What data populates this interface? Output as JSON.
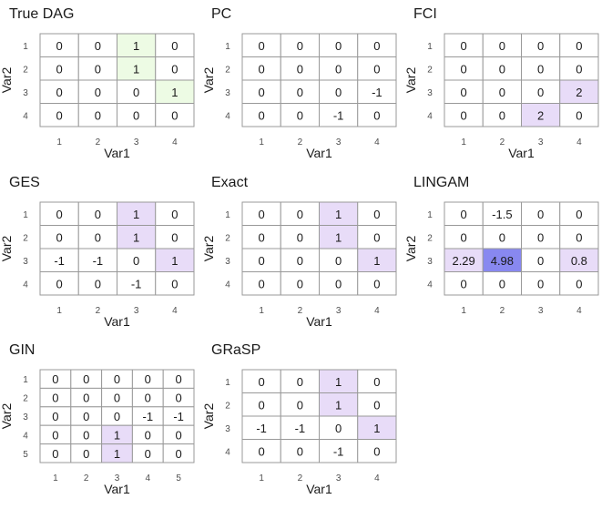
{
  "colors": {
    "cell_default": "#ffffff",
    "cell_match": "#edfbe4",
    "cell_diff": "#e8dcf8",
    "cell_strong": "#8888f0",
    "grid_line": "#999999"
  },
  "chart_data": [
    {
      "type": "heatmap",
      "title": "True DAG",
      "xlabel": "Var1",
      "ylabel": "Var2",
      "x_ticks": [
        "1",
        "2",
        "3",
        "4"
      ],
      "y_ticks": [
        "1",
        "2",
        "3",
        "4"
      ],
      "values": [
        [
          "0",
          "0",
          "1",
          "0"
        ],
        [
          "0",
          "0",
          "1",
          "0"
        ],
        [
          "0",
          "0",
          "0",
          "1"
        ],
        [
          "0",
          "0",
          "0",
          "0"
        ]
      ],
      "fills": [
        [
          "default",
          "default",
          "match",
          "default"
        ],
        [
          "default",
          "default",
          "match",
          "default"
        ],
        [
          "default",
          "default",
          "default",
          "match"
        ],
        [
          "default",
          "default",
          "default",
          "default"
        ]
      ]
    },
    {
      "type": "heatmap",
      "title": "PC",
      "xlabel": "Var1",
      "ylabel": "Var2",
      "x_ticks": [
        "1",
        "2",
        "3",
        "4"
      ],
      "y_ticks": [
        "1",
        "2",
        "3",
        "4"
      ],
      "values": [
        [
          "0",
          "0",
          "0",
          "0"
        ],
        [
          "0",
          "0",
          "0",
          "0"
        ],
        [
          "0",
          "0",
          "0",
          "-1"
        ],
        [
          "0",
          "0",
          "-1",
          "0"
        ]
      ],
      "fills": [
        [
          "default",
          "default",
          "default",
          "default"
        ],
        [
          "default",
          "default",
          "default",
          "default"
        ],
        [
          "default",
          "default",
          "default",
          "default"
        ],
        [
          "default",
          "default",
          "default",
          "default"
        ]
      ]
    },
    {
      "type": "heatmap",
      "title": "FCI",
      "xlabel": "Var1",
      "ylabel": "Var2",
      "x_ticks": [
        "1",
        "2",
        "3",
        "4"
      ],
      "y_ticks": [
        "1",
        "2",
        "3",
        "4"
      ],
      "values": [
        [
          "0",
          "0",
          "0",
          "0"
        ],
        [
          "0",
          "0",
          "0",
          "0"
        ],
        [
          "0",
          "0",
          "0",
          "2"
        ],
        [
          "0",
          "0",
          "2",
          "0"
        ]
      ],
      "fills": [
        [
          "default",
          "default",
          "default",
          "default"
        ],
        [
          "default",
          "default",
          "default",
          "default"
        ],
        [
          "default",
          "default",
          "default",
          "diff"
        ],
        [
          "default",
          "default",
          "diff",
          "default"
        ]
      ]
    },
    {
      "type": "heatmap",
      "title": "GES",
      "xlabel": "Var1",
      "ylabel": "Var2",
      "x_ticks": [
        "1",
        "2",
        "3",
        "4"
      ],
      "y_ticks": [
        "1",
        "2",
        "3",
        "4"
      ],
      "values": [
        [
          "0",
          "0",
          "1",
          "0"
        ],
        [
          "0",
          "0",
          "1",
          "0"
        ],
        [
          "-1",
          "-1",
          "0",
          "1"
        ],
        [
          "0",
          "0",
          "-1",
          "0"
        ]
      ],
      "fills": [
        [
          "default",
          "default",
          "diff",
          "default"
        ],
        [
          "default",
          "default",
          "diff",
          "default"
        ],
        [
          "default",
          "default",
          "default",
          "diff"
        ],
        [
          "default",
          "default",
          "default",
          "default"
        ]
      ]
    },
    {
      "type": "heatmap",
      "title": "Exact",
      "xlabel": "Var1",
      "ylabel": "Var2",
      "x_ticks": [
        "1",
        "2",
        "3",
        "4"
      ],
      "y_ticks": [
        "1",
        "2",
        "3",
        "4"
      ],
      "values": [
        [
          "0",
          "0",
          "1",
          "0"
        ],
        [
          "0",
          "0",
          "1",
          "0"
        ],
        [
          "0",
          "0",
          "0",
          "1"
        ],
        [
          "0",
          "0",
          "0",
          "0"
        ]
      ],
      "fills": [
        [
          "default",
          "default",
          "diff",
          "default"
        ],
        [
          "default",
          "default",
          "diff",
          "default"
        ],
        [
          "default",
          "default",
          "default",
          "diff"
        ],
        [
          "default",
          "default",
          "default",
          "default"
        ]
      ]
    },
    {
      "type": "heatmap",
      "title": "LINGAM",
      "xlabel": "",
      "ylabel": "Var2",
      "x_ticks": [
        "1",
        "2",
        "3",
        "4"
      ],
      "y_ticks": [
        "1",
        "2",
        "3",
        "4"
      ],
      "values": [
        [
          "0",
          "-1.5",
          "0",
          "0"
        ],
        [
          "0",
          "0",
          "0",
          "0"
        ],
        [
          "2.29",
          "4.98",
          "0",
          "0.8"
        ],
        [
          "0",
          "0",
          "0",
          "0"
        ]
      ],
      "fills": [
        [
          "default",
          "default",
          "default",
          "default"
        ],
        [
          "default",
          "default",
          "default",
          "default"
        ],
        [
          "diff",
          "strong",
          "default",
          "diff"
        ],
        [
          "default",
          "default",
          "default",
          "default"
        ]
      ]
    },
    {
      "type": "heatmap",
      "title": "GIN",
      "xlabel": "Var1",
      "ylabel": "Var2",
      "x_ticks": [
        "1",
        "2",
        "3",
        "4",
        "5"
      ],
      "y_ticks": [
        "1",
        "2",
        "3",
        "4",
        "5"
      ],
      "values": [
        [
          "0",
          "0",
          "0",
          "0",
          "0"
        ],
        [
          "0",
          "0",
          "0",
          "0",
          "0"
        ],
        [
          "0",
          "0",
          "0",
          "-1",
          "-1"
        ],
        [
          "0",
          "0",
          "1",
          "0",
          "0"
        ],
        [
          "0",
          "0",
          "1",
          "0",
          "0"
        ]
      ],
      "fills": [
        [
          "default",
          "default",
          "default",
          "default",
          "default"
        ],
        [
          "default",
          "default",
          "default",
          "default",
          "default"
        ],
        [
          "default",
          "default",
          "default",
          "default",
          "default"
        ],
        [
          "default",
          "default",
          "diff",
          "default",
          "default"
        ],
        [
          "default",
          "default",
          "diff",
          "default",
          "default"
        ]
      ]
    },
    {
      "type": "heatmap",
      "title": "GRaSP",
      "xlabel": "Var1",
      "ylabel": "Var2",
      "x_ticks": [
        "1",
        "2",
        "3",
        "4"
      ],
      "y_ticks": [
        "1",
        "2",
        "3",
        "4"
      ],
      "values": [
        [
          "0",
          "0",
          "1",
          "0"
        ],
        [
          "0",
          "0",
          "1",
          "0"
        ],
        [
          "-1",
          "-1",
          "0",
          "1"
        ],
        [
          "0",
          "0",
          "-1",
          "0"
        ]
      ],
      "fills": [
        [
          "default",
          "default",
          "diff",
          "default"
        ],
        [
          "default",
          "default",
          "diff",
          "default"
        ],
        [
          "default",
          "default",
          "default",
          "diff"
        ],
        [
          "default",
          "default",
          "default",
          "default"
        ]
      ]
    }
  ]
}
